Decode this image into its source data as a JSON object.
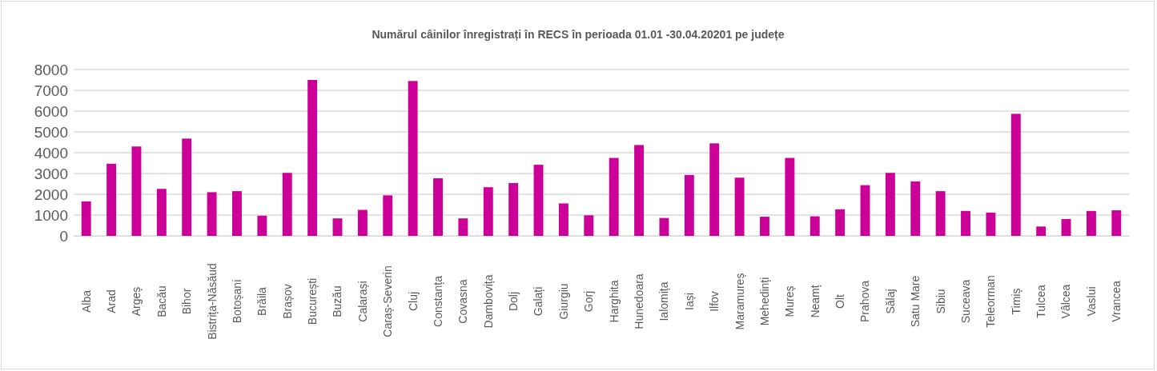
{
  "chart_data": {
    "type": "bar",
    "title": "Numărul câinilor înregistrați în RECS în perioada 01.01 -30.04.20201 pe județe",
    "categories": [
      "Alba",
      "Arad",
      "Argeș",
      "Bacău",
      "Bihor",
      "Bistrița-Năsăud",
      "Botoșani",
      "Brăila",
      "Brașov",
      "București",
      "Buzău",
      "Calarași",
      "Caraș-Severin",
      "Cluj",
      "Constanța",
      "Covasna",
      "Dambovița",
      "Dolj",
      "Galați",
      "Giurgiu",
      "Gorj",
      "Harghita",
      "Hunedoara",
      "Ialomița",
      "Iași",
      "Ilfov",
      "Maramureș",
      "Mehedinți",
      "Mureș",
      "Neamț",
      "Olt",
      "Prahova",
      "Sălaj",
      "Satu Mare",
      "Sibiu",
      "Suceava",
      "Teleorman",
      "Timiș",
      "Tulcea",
      "Vâlcea",
      "Vaslui",
      "Vrancea"
    ],
    "values": [
      1660,
      3470,
      4300,
      2260,
      4680,
      2100,
      2150,
      970,
      3030,
      7500,
      840,
      1250,
      1950,
      7450,
      2770,
      840,
      2340,
      2540,
      3420,
      1560,
      990,
      3750,
      4370,
      860,
      2930,
      4450,
      2800,
      920,
      3750,
      940,
      1280,
      2440,
      3030,
      2620,
      2150,
      1200,
      1120,
      5870,
      450,
      810,
      1200,
      1230
    ],
    "color": "#cc0099",
    "ylim": [
      0,
      8000
    ],
    "yticks": [
      0,
      1000,
      2000,
      3000,
      4000,
      5000,
      6000,
      7000,
      8000
    ],
    "grid": "y"
  }
}
